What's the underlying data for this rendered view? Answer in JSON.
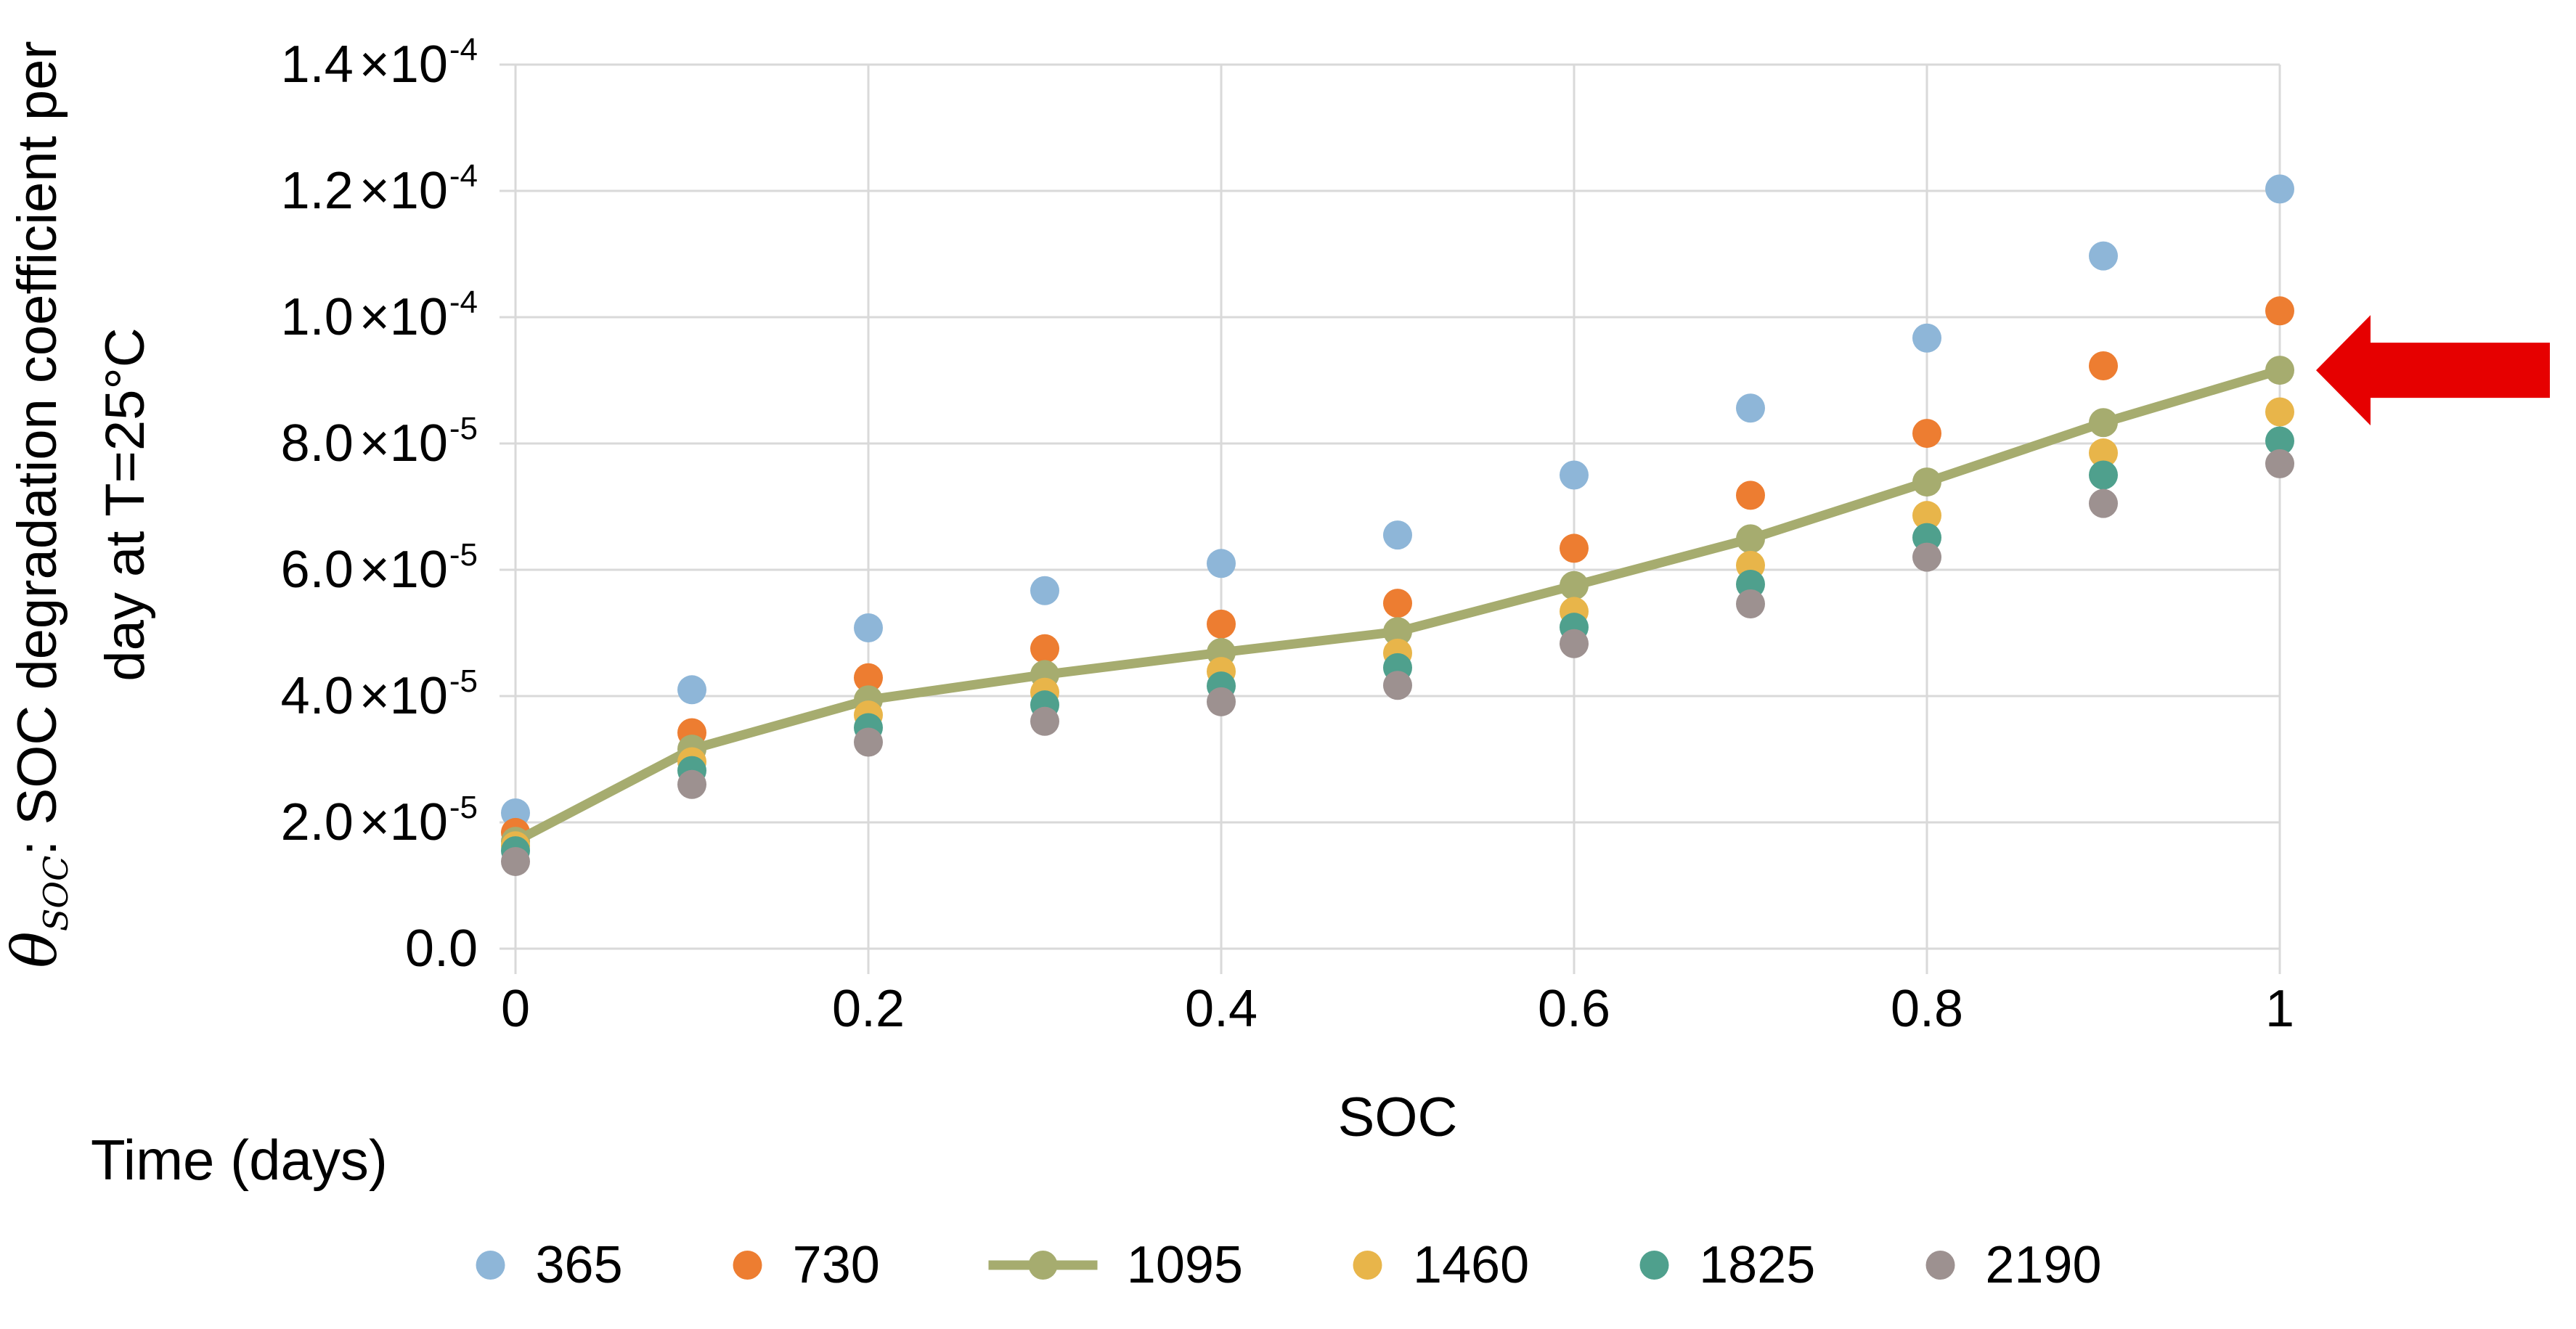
{
  "figure": {
    "y_axis_title": {
      "theta_symbol": "θ",
      "theta_subscript": "SOC",
      "line1_rest": ": SOC degradation coefficient per",
      "line2": "day at T=25°C"
    },
    "x_axis_title": "SOC",
    "legend_title": "Time (days)"
  },
  "chart_data": {
    "type": "scatter",
    "title": "",
    "xlabel": "SOC",
    "ylabel": "θ_SOC: SOC degradation coefficient per day at T=25°C",
    "legend_title": "Time (days)",
    "legend_position": "bottom",
    "grid": true,
    "x": [
      0,
      0.1,
      0.2,
      0.3,
      0.4,
      0.5,
      0.6,
      0.7,
      0.8,
      0.9,
      1.0
    ],
    "xlim": [
      0,
      1
    ],
    "x_tick_values": [
      0,
      0.2,
      0.4,
      0.6,
      0.8,
      1
    ],
    "x_tick_labels": [
      "0",
      "0.2",
      "0.4",
      "0.6",
      "0.8",
      "1"
    ],
    "y_value_scale": 1e-05,
    "ylim_scaled": [
      0,
      14
    ],
    "y_tick_labels": [
      {
        "mantissa": "1.4",
        "exponent": "-4",
        "value_scaled": 14
      },
      {
        "mantissa": "1.2",
        "exponent": "-4",
        "value_scaled": 12
      },
      {
        "mantissa": "1.0",
        "exponent": "-4",
        "value_scaled": 10
      },
      {
        "mantissa": "8.0",
        "exponent": "-5",
        "value_scaled": 8
      },
      {
        "mantissa": "6.0",
        "exponent": "-5",
        "value_scaled": 6
      },
      {
        "mantissa": "4.0",
        "exponent": "-5",
        "value_scaled": 4
      },
      {
        "mantissa": "2.0",
        "exponent": "-5",
        "value_scaled": 2
      },
      {
        "mantissa": "0.0",
        "exponent": null,
        "value_scaled": 0
      }
    ],
    "series": [
      {
        "name": "365",
        "color": "#8EB6D8",
        "marker": "circle",
        "has_line": false,
        "values_scaled": [
          2.15,
          4.1,
          5.08,
          5.67,
          6.1,
          6.55,
          7.5,
          8.56,
          9.67,
          10.97,
          12.03
        ]
      },
      {
        "name": "730",
        "color": "#ED7D31",
        "marker": "circle",
        "has_line": false,
        "values_scaled": [
          1.84,
          3.42,
          4.29,
          4.75,
          5.14,
          5.47,
          6.34,
          7.18,
          8.16,
          9.23,
          10.1
        ]
      },
      {
        "name": "1095",
        "color": "#A6AC6F",
        "marker": "circle",
        "has_line": true,
        "values_scaled": [
          1.7,
          3.16,
          3.94,
          4.34,
          4.69,
          5.02,
          5.75,
          6.49,
          7.39,
          8.33,
          9.16
        ]
      },
      {
        "name": "1460",
        "color": "#E8B54A",
        "marker": "circle",
        "has_line": false,
        "values_scaled": [
          1.63,
          2.96,
          3.7,
          4.06,
          4.39,
          4.68,
          5.34,
          6.07,
          6.86,
          7.85,
          8.5
        ]
      },
      {
        "name": "1825",
        "color": "#4FA08D",
        "marker": "circle",
        "has_line": false,
        "values_scaled": [
          1.55,
          2.82,
          3.5,
          3.86,
          4.16,
          4.45,
          5.09,
          5.77,
          6.51,
          7.5,
          8.04
        ]
      },
      {
        "name": "2190",
        "color": "#9D9190",
        "marker": "circle",
        "has_line": false,
        "values_scaled": [
          1.38,
          2.6,
          3.27,
          3.6,
          3.91,
          4.17,
          4.83,
          5.46,
          6.2,
          7.05,
          7.68
        ]
      }
    ],
    "annotation": {
      "type": "arrow-left",
      "color": "#E60000",
      "target_series": "1095",
      "target_x": 1
    },
    "colors": {
      "gridline": "#D9D9D9",
      "text": "#000000"
    }
  }
}
